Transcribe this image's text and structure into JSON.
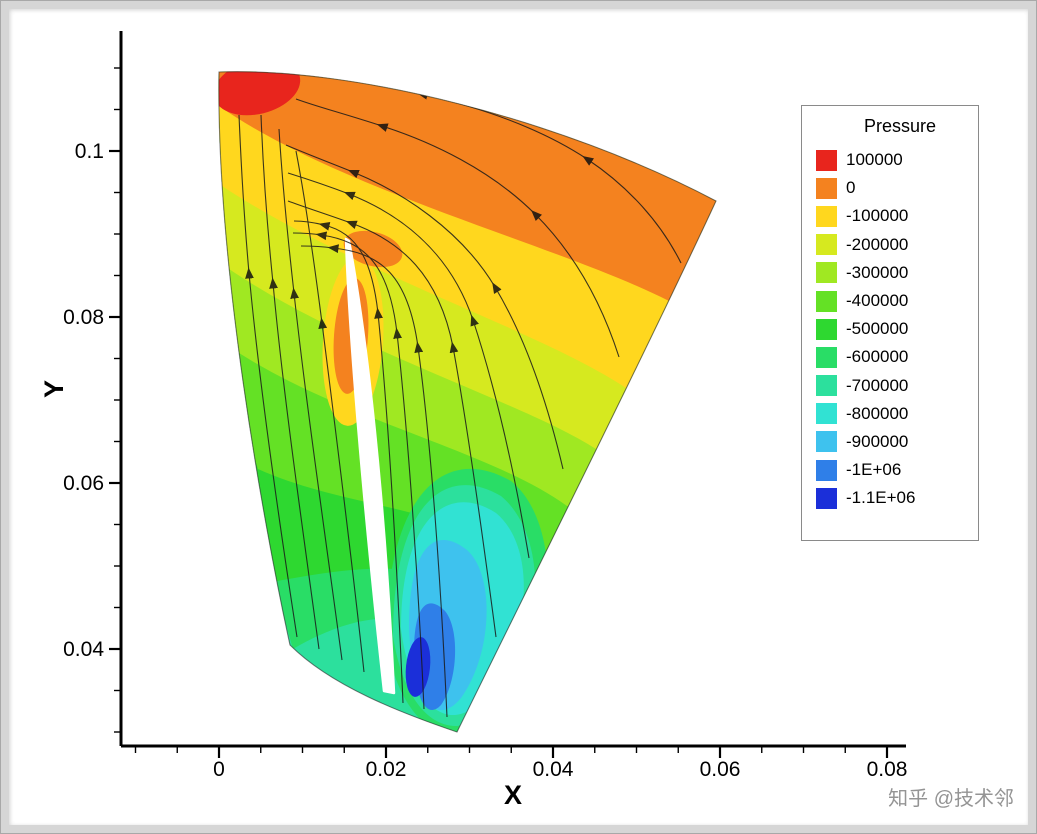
{
  "chart_data": {
    "type": "contour",
    "title": "",
    "xlabel": "X",
    "ylabel": "Y",
    "xlim": [
      -0.012,
      0.082
    ],
    "ylim": [
      0.028,
      0.1145
    ],
    "x_ticks": [
      "0",
      "0.02",
      "0.04",
      "0.06",
      "0.08"
    ],
    "y_ticks": [
      "0.1",
      "0.08",
      "0.06",
      "0.04"
    ],
    "minor_tick_interval": 0.005,
    "grid": false,
    "streamlines": true,
    "legend": {
      "title": "Pressure",
      "position": "right",
      "levels": [
        {
          "value": "100000",
          "color": "#e8251d"
        },
        {
          "value": "0",
          "color": "#f4821f"
        },
        {
          "value": "-100000",
          "color": "#ffd71e"
        },
        {
          "value": "-200000",
          "color": "#d6e91f"
        },
        {
          "value": "-300000",
          "color": "#a0e822"
        },
        {
          "value": "-400000",
          "color": "#64e125"
        },
        {
          "value": "-500000",
          "color": "#2ed830"
        },
        {
          "value": "-600000",
          "color": "#29dd66"
        },
        {
          "value": "-700000",
          "color": "#2ce09d"
        },
        {
          "value": "-800000",
          "color": "#31e2d3"
        },
        {
          "value": "-900000",
          "color": "#3ec2ee"
        },
        {
          "value": "-1E+06",
          "color": "#2f7fe8"
        },
        {
          "value": "-1.1E+06",
          "color": "#1b2fd9"
        }
      ]
    },
    "watermark": "知乎 @技术邻"
  }
}
